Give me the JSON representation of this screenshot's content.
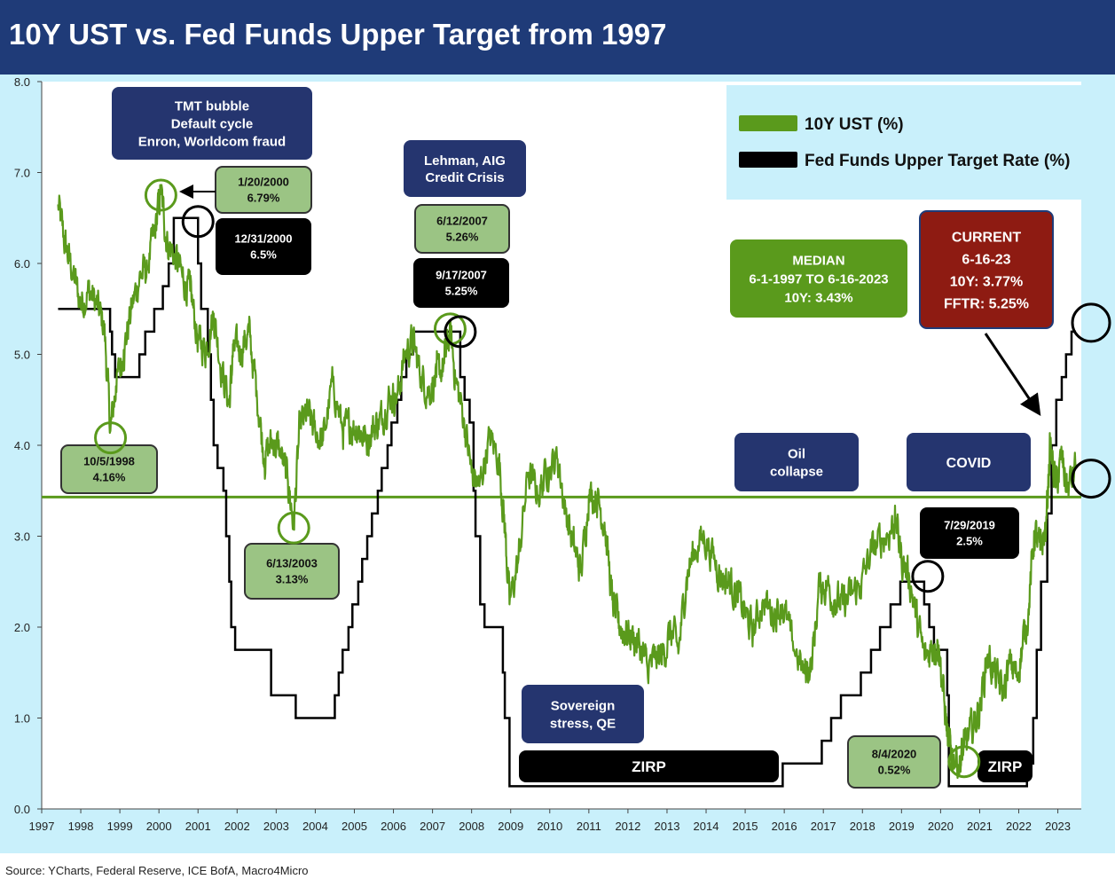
{
  "title": "10Y UST vs. Fed Funds Upper Target from 1997",
  "source": "Source: YCharts, Federal Reserve, ICE BofA, Macro4Micro",
  "colors": {
    "title_bg": "#1f3b78",
    "panel_bg": "#c9f0fb",
    "ust": "#5a9a1c",
    "fed": "#000000",
    "median": "#5a9a1c",
    "navy_box": "#25356f",
    "light_green_box": "#9bc484",
    "median_box": "#5a9a1c",
    "current_box": "#8e1b12"
  },
  "legend": [
    {
      "label": "10Y UST (%)",
      "color": "#5a9a1c"
    },
    {
      "label": "Fed Funds Upper Target Rate (%)",
      "color": "#000000"
    }
  ],
  "boxes": {
    "tmt": [
      "TMT bubble",
      "Default cycle",
      "Enron, Worldcom fraud"
    ],
    "lehman": [
      "Lehman, AIG",
      "Credit Crisis"
    ],
    "sovereign": [
      "Sovereign",
      "stress, QE"
    ],
    "oil": [
      "Oil",
      "collapse"
    ],
    "covid": [
      "COVID"
    ],
    "zirp1": [
      "ZIRP"
    ],
    "zirp2": [
      "ZIRP"
    ],
    "median": [
      "MEDIAN",
      "6-1-1997 TO 6-16-2023",
      "10Y: 3.43%"
    ],
    "current": [
      "CURRENT",
      "6-16-23",
      "10Y: 3.77%",
      "FFTR: 5.25%"
    ],
    "d2000": [
      "1/20/2000",
      "6.79%"
    ],
    "f2000": [
      "12/31/2000",
      "6.5%"
    ],
    "d2007": [
      "6/12/2007",
      "5.26%"
    ],
    "f2007": [
      "9/17/2007",
      "5.25%"
    ],
    "d1998": [
      "10/5/1998",
      "4.16%"
    ],
    "d2003": [
      "6/13/2003",
      "3.13%"
    ],
    "f2019": [
      "7/29/2019",
      "2.5%"
    ],
    "d2020": [
      "8/4/2020",
      "0.52%"
    ]
  },
  "chart_data": {
    "type": "line",
    "title": "10Y UST vs. Fed Funds Upper Target from 1997",
    "xlim": [
      1997,
      2023.6
    ],
    "ylim": [
      0,
      8
    ],
    "x_ticks": [
      "1997",
      "1998",
      "1999",
      "2000",
      "2001",
      "2002",
      "2003",
      "2004",
      "2005",
      "2006",
      "2007",
      "2008",
      "2009",
      "2010",
      "2011",
      "2012",
      "2013",
      "2014",
      "2015",
      "2016",
      "2017",
      "2018",
      "2019",
      "2020",
      "2021",
      "2022",
      "2023"
    ],
    "y_ticks": [
      "0.0",
      "1.0",
      "2.0",
      "3.0",
      "4.0",
      "5.0",
      "6.0",
      "7.0",
      "8.0"
    ],
    "grid": false,
    "legend_position": "top-right",
    "median_10y": 3.43,
    "series": [
      {
        "name": "10Y UST (%)",
        "x": [
          1997.42,
          1997.6,
          1997.8,
          1998.0,
          1998.2,
          1998.4,
          1998.6,
          1998.76,
          1998.9,
          1999.1,
          1999.3,
          1999.5,
          1999.7,
          1999.9,
          2000.05,
          2000.2,
          2000.4,
          2000.6,
          2000.8,
          2001.0,
          2001.2,
          2001.4,
          2001.6,
          2001.8,
          2001.9,
          2002.1,
          2002.3,
          2002.5,
          2002.7,
          2002.9,
          2003.1,
          2003.3,
          2003.45,
          2003.6,
          2003.8,
          2004.0,
          2004.2,
          2004.45,
          2004.7,
          2004.9,
          2005.1,
          2005.3,
          2005.5,
          2005.7,
          2005.9,
          2006.1,
          2006.3,
          2006.5,
          2006.7,
          2006.9,
          2007.1,
          2007.3,
          2007.45,
          2007.6,
          2007.8,
          2008.0,
          2008.2,
          2008.45,
          2008.7,
          2008.85,
          2008.97,
          2009.2,
          2009.45,
          2009.7,
          2009.95,
          2010.2,
          2010.4,
          2010.6,
          2010.8,
          2011.0,
          2011.2,
          2011.4,
          2011.6,
          2011.75,
          2011.9,
          2012.1,
          2012.3,
          2012.5,
          2012.7,
          2012.9,
          2013.1,
          2013.3,
          2013.5,
          2013.7,
          2013.95,
          2014.2,
          2014.4,
          2014.6,
          2014.8,
          2015.0,
          2015.2,
          2015.45,
          2015.7,
          2015.95,
          2016.2,
          2016.5,
          2016.7,
          2016.9,
          2017.1,
          2017.3,
          2017.5,
          2017.7,
          2017.95,
          2018.2,
          2018.45,
          2018.7,
          2018.85,
          2019.0,
          2019.2,
          2019.4,
          2019.6,
          2019.8,
          2019.95,
          2020.1,
          2020.2,
          2020.3,
          2020.5,
          2020.6,
          2020.8,
          2021.0,
          2021.2,
          2021.4,
          2021.6,
          2021.8,
          2021.95,
          2022.1,
          2022.25,
          2022.4,
          2022.55,
          2022.7,
          2022.8,
          2022.95,
          2023.1,
          2023.25,
          2023.46
        ],
        "values": [
          6.65,
          6.2,
          5.9,
          5.55,
          5.7,
          5.55,
          5.3,
          4.16,
          4.65,
          5.05,
          5.5,
          5.85,
          5.95,
          6.35,
          6.79,
          6.25,
          6.1,
          5.85,
          5.7,
          5.15,
          5.05,
          5.45,
          4.85,
          4.45,
          5.05,
          5.05,
          5.25,
          4.6,
          3.85,
          4.05,
          3.95,
          3.6,
          3.13,
          4.2,
          4.35,
          4.15,
          4.05,
          4.7,
          4.15,
          4.2,
          4.2,
          4.05,
          4.2,
          4.3,
          4.55,
          4.55,
          5.0,
          5.15,
          4.75,
          4.6,
          4.75,
          4.9,
          5.26,
          4.7,
          4.3,
          3.7,
          3.55,
          4.1,
          3.85,
          3.1,
          2.25,
          2.75,
          3.7,
          3.45,
          3.75,
          3.85,
          3.3,
          2.9,
          2.6,
          3.45,
          3.45,
          3.15,
          2.3,
          2.05,
          1.95,
          1.9,
          1.8,
          1.55,
          1.65,
          1.7,
          1.95,
          1.75,
          2.55,
          2.85,
          3.0,
          2.75,
          2.55,
          2.5,
          2.35,
          2.15,
          1.95,
          2.3,
          2.15,
          2.25,
          1.85,
          1.5,
          1.6,
          2.45,
          2.45,
          2.3,
          2.25,
          2.35,
          2.45,
          2.8,
          2.95,
          3.05,
          3.2,
          2.75,
          2.55,
          2.05,
          1.65,
          1.8,
          1.8,
          1.15,
          0.7,
          0.6,
          0.52,
          0.68,
          0.88,
          1.1,
          1.7,
          1.45,
          1.3,
          1.6,
          1.45,
          1.8,
          2.2,
          3.05,
          2.85,
          3.1,
          4.0,
          3.55,
          3.85,
          3.5,
          3.77
        ]
      },
      {
        "name": "Fed Funds Upper Target Rate (%)",
        "step": true,
        "x": [
          1997.42,
          1998.75,
          1998.8,
          1998.88,
          1999.5,
          1999.65,
          1999.88,
          2000.1,
          2000.25,
          2000.38,
          2001.0,
          2001.08,
          2001.25,
          2001.33,
          2001.4,
          2001.5,
          2001.65,
          2001.72,
          2001.8,
          2001.85,
          2001.95,
          2002.87,
          2003.5,
          2004.5,
          2004.6,
          2004.7,
          2004.85,
          2004.95,
          2005.1,
          2005.2,
          2005.33,
          2005.45,
          2005.6,
          2005.7,
          2005.85,
          2005.95,
          2006.1,
          2006.2,
          2006.33,
          2006.5,
          2007.71,
          2007.82,
          2007.95,
          2008.05,
          2008.1,
          2008.22,
          2008.33,
          2008.8,
          2008.85,
          2008.97,
          2015.96,
          2016.96,
          2017.2,
          2017.45,
          2017.96,
          2018.22,
          2018.45,
          2018.72,
          2018.97,
          2019.58,
          2019.71,
          2019.83,
          2020.17,
          2020.21,
          2022.21,
          2022.37,
          2022.46,
          2022.57,
          2022.73,
          2022.84,
          2022.96,
          2023.1,
          2023.21,
          2023.35,
          2023.46
        ],
        "values": [
          5.5,
          5.25,
          5.0,
          4.75,
          5.0,
          5.25,
          5.5,
          5.75,
          6.0,
          6.5,
          6.0,
          5.5,
          5.0,
          4.5,
          4.0,
          3.75,
          3.5,
          3.0,
          2.5,
          2.0,
          1.75,
          1.25,
          1.0,
          1.25,
          1.5,
          1.75,
          2.0,
          2.25,
          2.5,
          2.75,
          3.0,
          3.25,
          3.5,
          3.75,
          4.0,
          4.25,
          4.5,
          4.75,
          5.0,
          5.25,
          4.75,
          4.5,
          4.25,
          3.5,
          3.0,
          2.25,
          2.0,
          1.5,
          1.0,
          0.25,
          0.5,
          0.75,
          1.0,
          1.25,
          1.5,
          1.75,
          2.0,
          2.25,
          2.5,
          2.25,
          2.0,
          1.75,
          1.25,
          0.25,
          0.5,
          1.0,
          1.75,
          2.5,
          3.25,
          4.0,
          4.5,
          4.75,
          5.0,
          5.25,
          5.25
        ]
      }
    ]
  }
}
